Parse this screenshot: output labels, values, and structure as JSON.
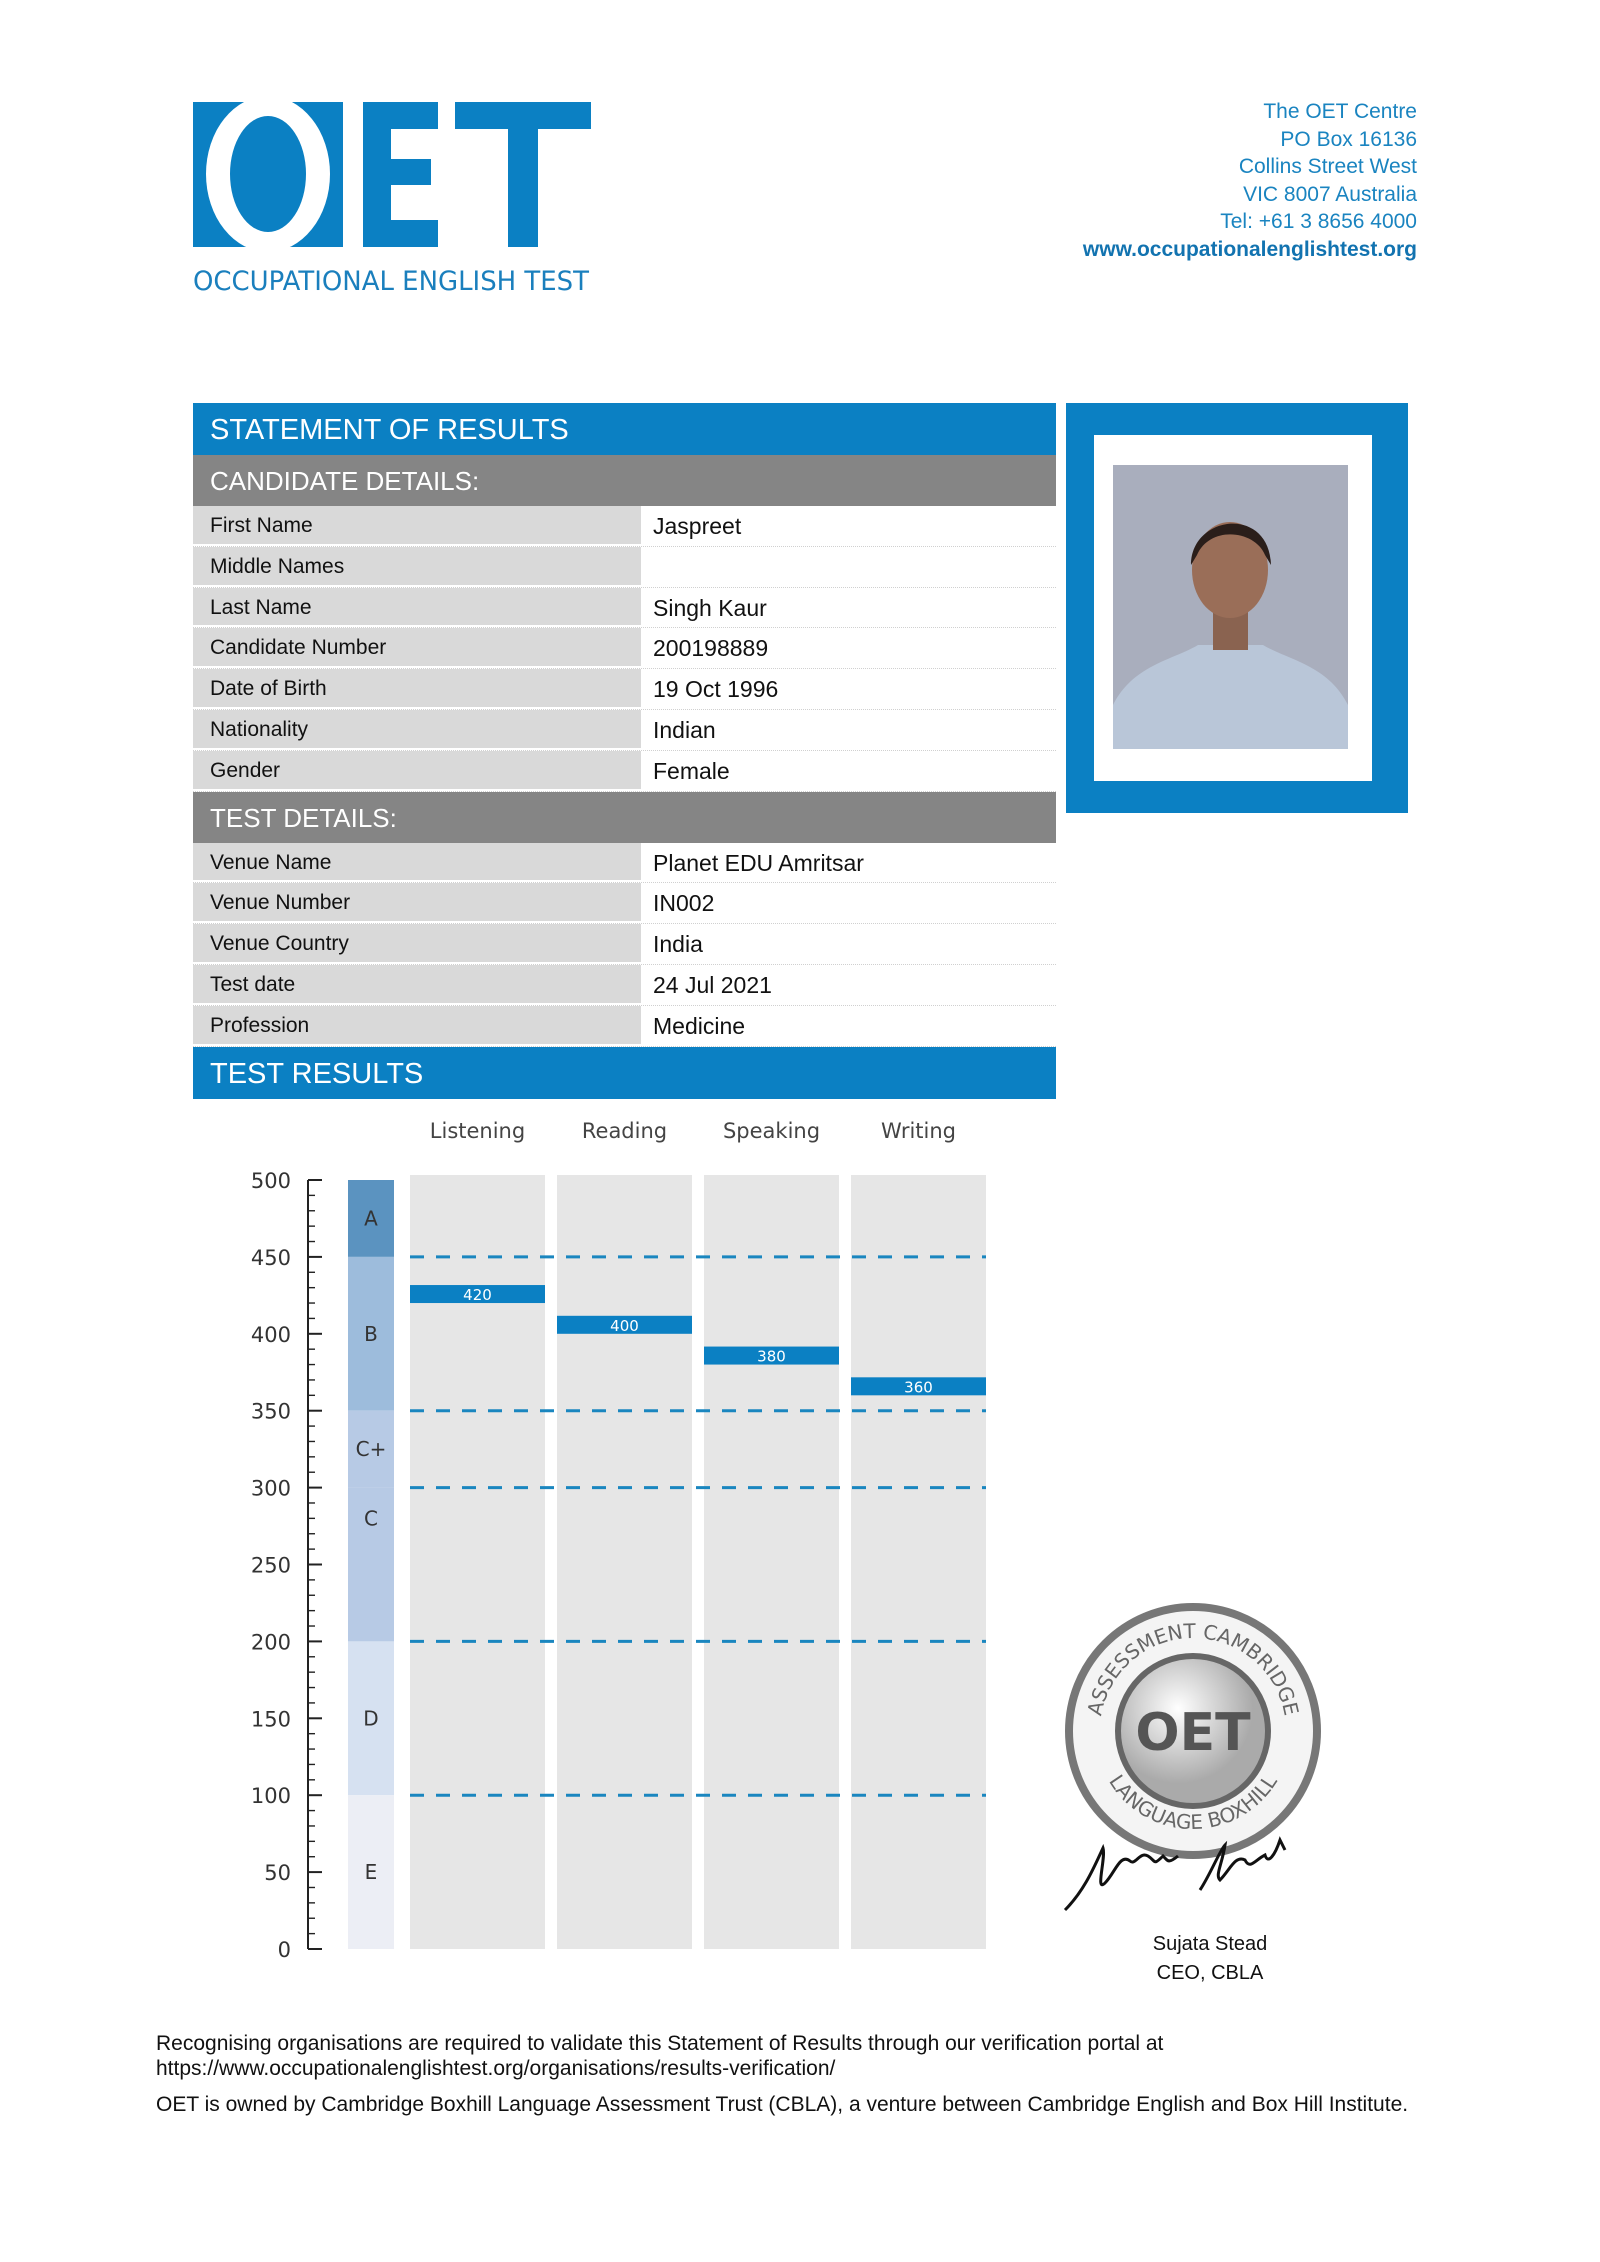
{
  "logo": {
    "letters": "OET",
    "subtitle": "OCCUPATIONAL ENGLISH TEST"
  },
  "address": {
    "lines": [
      "The OET Centre",
      "PO Box 16136",
      "Collins Street West",
      "VIC 8007 Australia",
      "Tel: +61 3 8656 4000"
    ],
    "website": "www.occupationalenglishtest.org"
  },
  "statement_title": "STATEMENT OF RESULTS",
  "candidate": {
    "heading": "CANDIDATE DETAILS:",
    "rows": [
      {
        "label": "First Name",
        "value": "Jaspreet"
      },
      {
        "label": "Middle Names",
        "value": ""
      },
      {
        "label": "Last Name",
        "value": "Singh Kaur"
      },
      {
        "label": "Candidate Number",
        "value": "200198889"
      },
      {
        "label": "Date of Birth",
        "value": "19 Oct 1996"
      },
      {
        "label": "Nationality",
        "value": "Indian"
      },
      {
        "label": "Gender",
        "value": "Female"
      }
    ]
  },
  "test": {
    "heading": "TEST DETAILS:",
    "rows": [
      {
        "label": "Venue Name",
        "value": "Planet EDU Amritsar"
      },
      {
        "label": "Venue Number",
        "value": "IN002"
      },
      {
        "label": "Venue Country",
        "value": "India"
      },
      {
        "label": "Test date",
        "value": "24 Jul 2021"
      },
      {
        "label": "Profession",
        "value": "Medicine"
      }
    ]
  },
  "results_title": "TEST RESULTS",
  "colors": {
    "brand_blue": "#0b80c3",
    "section_gray": "#858585",
    "label_gray": "#d9d9d9",
    "column_gray": "#e6e6e6"
  },
  "chart_data": {
    "type": "bar",
    "categories": [
      "Listening",
      "Reading",
      "Speaking",
      "Writing"
    ],
    "values": [
      420,
      400,
      380,
      360
    ],
    "data_labels": [
      "420",
      "400",
      "380",
      "360"
    ],
    "ylim": [
      0,
      500
    ],
    "y_ticks": [
      0,
      50,
      100,
      150,
      200,
      250,
      300,
      350,
      400,
      450,
      500
    ],
    "grade_bands": [
      {
        "grade": "A",
        "from": 450,
        "to": 500,
        "color": "#5b93c0"
      },
      {
        "grade": "B",
        "from": 350,
        "to": 450,
        "color": "#9dbcdc"
      },
      {
        "grade": "C+",
        "from": 300,
        "to": 350,
        "color": "#b7cae5"
      },
      {
        "grade": "C",
        "from": 200,
        "to": 300,
        "color": "#b7cae5"
      },
      {
        "grade": "D",
        "from": 100,
        "to": 200,
        "color": "#d6e1f1"
      },
      {
        "grade": "E",
        "from": 0,
        "to": 100,
        "color": "#eceef5"
      }
    ],
    "reference_lines": [
      450,
      350,
      300,
      200,
      100
    ]
  },
  "seal": {
    "center": "OET",
    "ring_text_top": "ASSESSMENT  CAMBRIDGE",
    "ring_text_bottom": "LANGUAGE  BOXHILL"
  },
  "signatory": {
    "name": "Sujata Stead",
    "title": "CEO, CBLA"
  },
  "footer": {
    "line1": "Recognising organisations are required to validate this Statement of Results through our verification portal at",
    "line2": "https://www.occupationalenglishtest.org/organisations/results-verification/",
    "line3": "OET is owned by Cambridge Boxhill Language Assessment Trust (CBLA), a venture between Cambridge English and Box Hill Institute."
  }
}
